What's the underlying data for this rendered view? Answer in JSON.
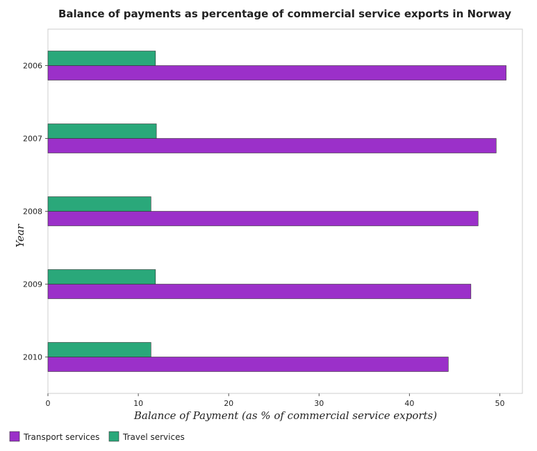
{
  "chart_data": {
    "type": "bar",
    "orientation": "horizontal",
    "title": "Balance of payments as percentage of commercial service exports in Norway",
    "xlabel": "Balance of Payment (as % of commercial service exports)",
    "ylabel": "Year",
    "categories": [
      "2006",
      "2007",
      "2008",
      "2009",
      "2010"
    ],
    "series": [
      {
        "name": "Transport services",
        "color": "#9b30c9",
        "values": [
          50.7,
          49.6,
          47.6,
          46.8,
          44.3
        ]
      },
      {
        "name": "Travel services",
        "color": "#2aa87a",
        "values": [
          11.9,
          12.0,
          11.4,
          11.9,
          11.4
        ]
      }
    ],
    "xlim": [
      0,
      52.5
    ],
    "xticks": [
      0,
      10,
      20,
      30,
      40,
      50
    ],
    "xtick_labels": [
      "0",
      "10",
      "20",
      "30",
      "40",
      "50"
    ],
    "grid": false,
    "legend_position": "bottom-left"
  }
}
